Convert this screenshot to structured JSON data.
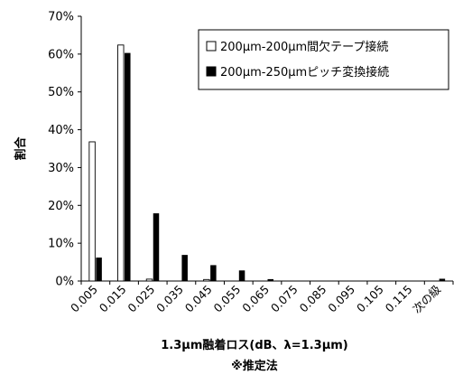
{
  "chart_data": {
    "type": "bar",
    "title": "",
    "xlabel": "1.3μm融着ロス(dB、λ=1.3μm)",
    "xlabel_note": "※推定法",
    "ylabel": "割合",
    "ylim": [
      0,
      70
    ],
    "yticks": [
      "0%",
      "10%",
      "20%",
      "30%",
      "40%",
      "50%",
      "60%",
      "70%"
    ],
    "grid": false,
    "legend_position": "top-right",
    "categories": [
      "0.005",
      "0.015",
      "0.025",
      "0.035",
      "0.045",
      "0.055",
      "0.065",
      "0.075",
      "0.085",
      "0.095",
      "0.105",
      "0.115",
      "次の級"
    ],
    "series": [
      {
        "name": "200μm-200μm間欠テープ接続",
        "color": "#ffffff",
        "stroke": "#000000",
        "values": [
          36.8,
          62.4,
          0.5,
          0,
          0.4,
          0,
          0,
          0,
          0,
          0,
          0,
          0,
          0
        ]
      },
      {
        "name": "200μm-250μmピッチ変換接続",
        "color": "#000000",
        "stroke": "#000000",
        "values": [
          6.2,
          60.3,
          17.9,
          6.9,
          4.2,
          2.8,
          0.5,
          0,
          0,
          0,
          0,
          0,
          0.6
        ]
      }
    ]
  }
}
